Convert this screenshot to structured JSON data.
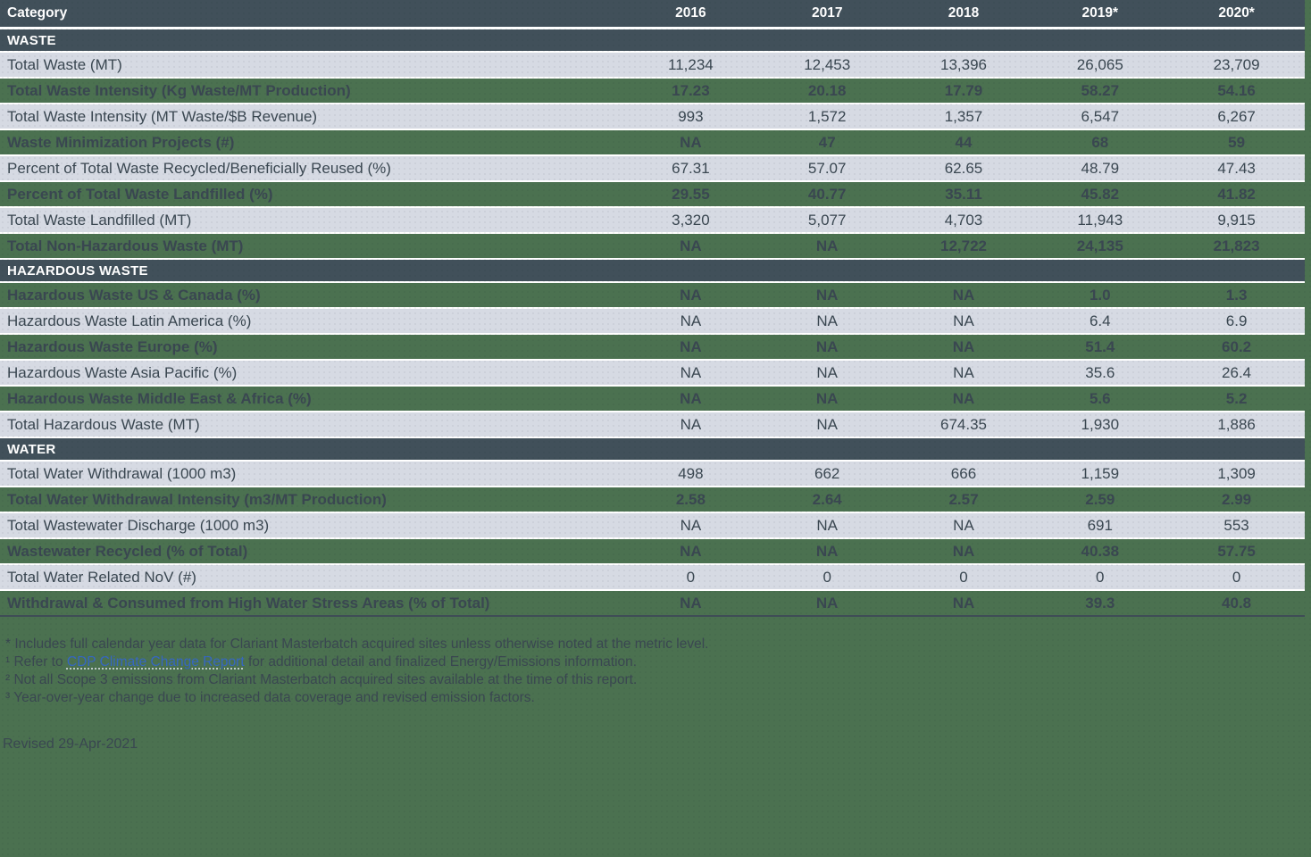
{
  "colors": {
    "page_background": "#4b7150",
    "header_bar": "#41505a",
    "light_row": "#d6dae3",
    "separator": "#ffffff",
    "table_bottom_border": "#3f4c56",
    "text_dark": "#3a4751",
    "text_light": "#ffffff",
    "link_blue": "#3667c1"
  },
  "table": {
    "columns": [
      "Category",
      "2016",
      "2017",
      "2018",
      "2019*",
      "2020*"
    ],
    "sections": [
      {
        "title": "WASTE",
        "first_shade": "light",
        "rows": [
          {
            "label": "Total Waste (MT)",
            "values": [
              "11,234",
              "12,453",
              "13,396",
              "26,065",
              "23,709"
            ]
          },
          {
            "label": "Total Waste Intensity (Kg Waste/MT Production)",
            "values": [
              "17.23",
              "20.18",
              "17.79",
              "58.27",
              "54.16"
            ]
          },
          {
            "label": "Total Waste Intensity (MT Waste/$B Revenue)",
            "values": [
              "993",
              "1,572",
              "1,357",
              "6,547",
              "6,267"
            ]
          },
          {
            "label": "Waste Minimization Projects (#)",
            "values": [
              "NA",
              "47",
              "44",
              "68",
              "59"
            ]
          },
          {
            "label": "Percent of Total Waste Recycled/Beneficially Reused (%)",
            "values": [
              "67.31",
              "57.07",
              "62.65",
              "48.79",
              "47.43"
            ]
          },
          {
            "label": "Percent of Total Waste Landfilled (%)",
            "values": [
              "29.55",
              "40.77",
              "35.11",
              "45.82",
              "41.82"
            ]
          },
          {
            "label": "Total Waste Landfilled (MT)",
            "values": [
              "3,320",
              "5,077",
              "4,703",
              "11,943",
              "9,915"
            ]
          },
          {
            "label": "Total Non-Hazardous Waste (MT)",
            "values": [
              "NA",
              "NA",
              "12,722",
              "24,135",
              "21,823"
            ]
          }
        ]
      },
      {
        "title": "HAZARDOUS WASTE",
        "first_shade": "green",
        "rows": [
          {
            "label": "Hazardous Waste US & Canada (%)",
            "values": [
              "NA",
              "NA",
              "NA",
              "1.0",
              "1.3"
            ]
          },
          {
            "label": "Hazardous Waste Latin America (%)",
            "values": [
              "NA",
              "NA",
              "NA",
              "6.4",
              "6.9"
            ]
          },
          {
            "label": "Hazardous Waste Europe (%)",
            "values": [
              "NA",
              "NA",
              "NA",
              "51.4",
              "60.2"
            ]
          },
          {
            "label": "Hazardous Waste Asia Pacific (%)",
            "values": [
              "NA",
              "NA",
              "NA",
              "35.6",
              "26.4"
            ]
          },
          {
            "label": "Hazardous Waste Middle East & Africa (%)",
            "values": [
              "NA",
              "NA",
              "NA",
              "5.6",
              "5.2"
            ]
          },
          {
            "label": "Total Hazardous Waste (MT)",
            "values": [
              "NA",
              "NA",
              "674.35",
              "1,930",
              "1,886"
            ]
          }
        ]
      },
      {
        "title": "WATER",
        "first_shade": "light",
        "rows": [
          {
            "label": "Total Water Withdrawal (1000 m3)",
            "values": [
              "498",
              "662",
              "666",
              "1,159",
              "1,309"
            ]
          },
          {
            "label": "Total Water Withdrawal Intensity (m3/MT Production)",
            "values": [
              "2.58",
              "2.64",
              "2.57",
              "2.59",
              "2.99"
            ]
          },
          {
            "label": "Total Wastewater Discharge (1000 m3)",
            "values": [
              "NA",
              "NA",
              "NA",
              "691",
              "553"
            ]
          },
          {
            "label": "Wastewater Recycled (% of Total)",
            "values": [
              "NA",
              "NA",
              "NA",
              "40.38",
              "57.75"
            ]
          },
          {
            "label": "Total Water Related NoV (#)",
            "values": [
              "0",
              "0",
              "0",
              "0",
              "0"
            ]
          },
          {
            "label": "Withdrawal & Consumed from High Water Stress Areas (% of Total)",
            "values": [
              "NA",
              "NA",
              "NA",
              "39.3",
              "40.8"
            ]
          }
        ]
      }
    ]
  },
  "footnotes": {
    "line1": "* Includes full calendar year data for Clariant Masterbatch acquired sites unless otherwise noted at the metric level.",
    "line2_prefix": "¹ Refer to ",
    "line2_link": "CDP Climate Change Report",
    "line2_suffix": " for additional detail and finalized Energy/Emissions information.",
    "line3": "² Not all Scope 3 emissions from Clariant Masterbatch acquired sites available at the time of this report.",
    "line4": "³ Year-over-year change due to increased data coverage and revised emission factors."
  },
  "revised": {
    "text": "Revised 29-Apr-2021"
  }
}
